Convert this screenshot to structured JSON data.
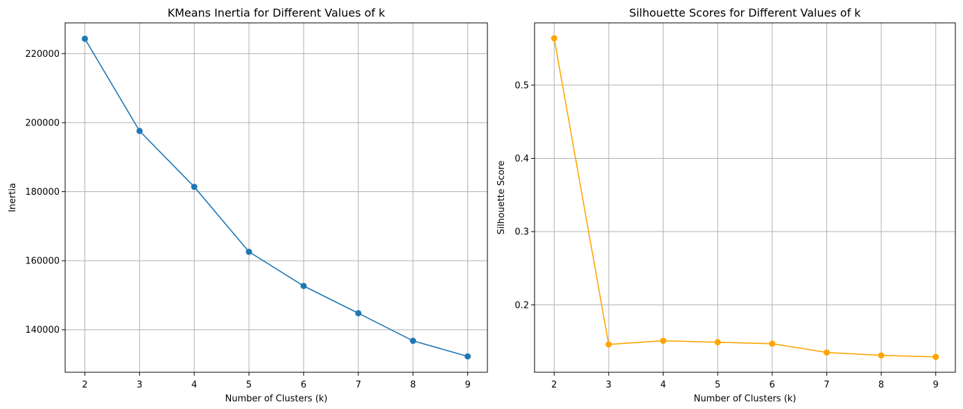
{
  "chart_data": [
    {
      "type": "line",
      "title": "KMeans Inertia for Different Values of k",
      "xlabel": "Number of Clusters (k)",
      "ylabel": "Inertia",
      "x": [
        2,
        3,
        4,
        5,
        6,
        7,
        8,
        9
      ],
      "x_ticks": [
        "2",
        "3",
        "4",
        "5",
        "6",
        "7",
        "8",
        "9"
      ],
      "xlim": [
        1.64,
        9.36
      ],
      "series": [
        {
          "values": [
            224300,
            197600,
            181400,
            162600,
            152700,
            144800,
            136800,
            132300
          ],
          "color": "#1f77b4",
          "marker": "circle"
        }
      ],
      "ylim": [
        127700,
        228900
      ],
      "y_ticks": [
        140000,
        160000,
        180000,
        200000,
        220000
      ],
      "y_tick_labels": [
        "140000",
        "160000",
        "180000",
        "200000",
        "220000"
      ],
      "grid": true
    },
    {
      "type": "line",
      "title": "Silhouette Scores for Different Values of k",
      "xlabel": "Number of Clusters (k)",
      "ylabel": "Silhouette Score",
      "x": [
        2,
        3,
        4,
        5,
        6,
        7,
        8,
        9
      ],
      "x_ticks": [
        "2",
        "3",
        "4",
        "5",
        "6",
        "7",
        "8",
        "9"
      ],
      "xlim": [
        1.64,
        9.36
      ],
      "series": [
        {
          "values": [
            0.564,
            0.146,
            0.151,
            0.149,
            0.147,
            0.135,
            0.131,
            0.129
          ],
          "color": "#ffa500",
          "marker": "circle"
        }
      ],
      "ylim": [
        0.108,
        0.585
      ],
      "y_ticks": [
        0.2,
        0.3,
        0.4,
        0.5
      ],
      "y_tick_labels": [
        "0.2",
        "0.3",
        "0.4",
        "0.5"
      ],
      "grid": true
    }
  ]
}
